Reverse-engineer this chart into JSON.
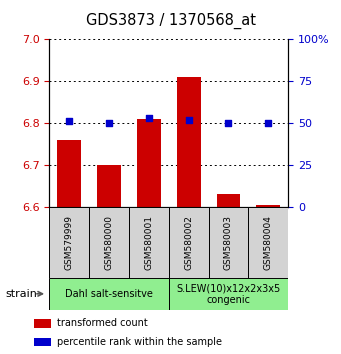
{
  "title": "GDS3873 / 1370568_at",
  "samples": [
    "GSM579999",
    "GSM580000",
    "GSM580001",
    "GSM580002",
    "GSM580003",
    "GSM580004"
  ],
  "transformed_counts": [
    6.76,
    6.7,
    6.81,
    6.91,
    6.63,
    6.605
  ],
  "percentile_ranks": [
    51,
    50,
    53,
    52,
    50,
    50
  ],
  "ylim_left": [
    6.6,
    7.0
  ],
  "ylim_right": [
    0,
    100
  ],
  "yticks_left": [
    6.6,
    6.7,
    6.8,
    6.9,
    7.0
  ],
  "yticks_right": [
    0,
    25,
    50,
    75,
    100
  ],
  "ytick_labels_right": [
    "0",
    "25",
    "50",
    "75",
    "100%"
  ],
  "groups": [
    {
      "label": "Dahl salt-sensitve",
      "indices": [
        0,
        1,
        2
      ],
      "color": "#90EE90"
    },
    {
      "label": "S.LEW(10)x12x2x3x5\ncongenic",
      "indices": [
        3,
        4,
        5
      ],
      "color": "#90EE90"
    }
  ],
  "bar_color": "#CC0000",
  "dot_color": "#0000CC",
  "bar_bottom": 6.6,
  "bar_width": 0.6,
  "dot_size": 25,
  "tick_label_color_left": "#CC0000",
  "tick_label_color_right": "#0000CC",
  "legend_items": [
    {
      "color": "#CC0000",
      "label": "transformed count"
    },
    {
      "color": "#0000CC",
      "label": "percentile rank within the sample"
    }
  ],
  "strain_label": "strain",
  "sample_box_color": "#D3D3D3",
  "group_color": "#90EE90"
}
